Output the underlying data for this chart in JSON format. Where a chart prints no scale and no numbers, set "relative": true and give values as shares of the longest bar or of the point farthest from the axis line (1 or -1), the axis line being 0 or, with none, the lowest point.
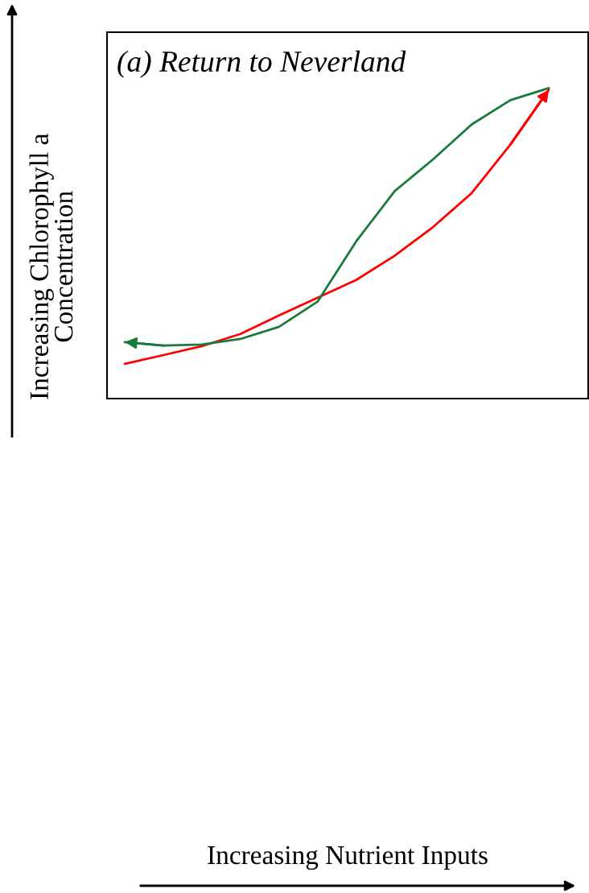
{
  "chart_data": {
    "type": "line",
    "title": "(a) Return to Neverland",
    "annotations": [
      "Increasing Nutrient Inputs"
    ],
    "ylabel": "Increasing Chlorophyll a\nConcentration",
    "relative": true,
    "categories": [
      null,
      null,
      null,
      null,
      null,
      null,
      null,
      null,
      null,
      null,
      null,
      null
    ],
    "series": [
      {
        "color": "#ff0000",
        "values": [
          0.112,
          0.14,
          0.169,
          0.208,
          0.268,
          0.325,
          0.382,
          0.46,
          0.553,
          0.662,
          0.818,
          0.995
        ]
      },
      {
        "color": "#1a7a3a",
        "values": [
          0.182,
          0.171,
          0.174,
          0.192,
          0.231,
          0.312,
          0.506,
          0.668,
          0.771,
          0.883,
          0.961,
          1.0
        ]
      }
    ]
  }
}
